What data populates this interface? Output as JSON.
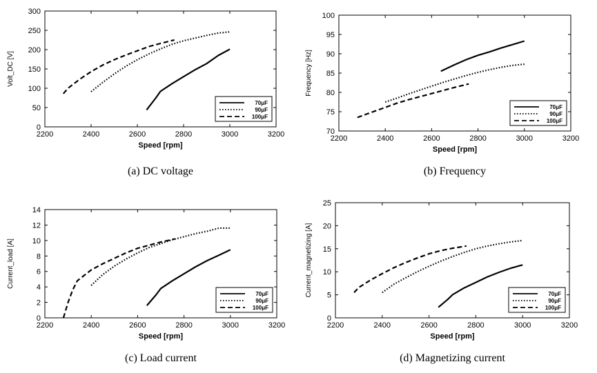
{
  "chart_data": [
    {
      "type": "line",
      "caption": "(a)  DC  voltage",
      "xlabel": "Speed [rpm]",
      "ylabel": "Volt_DC [V]",
      "xlim": [
        2200,
        3200
      ],
      "ylim": [
        0,
        300
      ],
      "xticks": [
        2200,
        2400,
        2600,
        2800,
        3000,
        3200
      ],
      "yticks": [
        0,
        50,
        100,
        150,
        200,
        250,
        300
      ],
      "legend_position": "bottom-right",
      "series": [
        {
          "name": "70μF",
          "style": "solid",
          "x": [
            2640,
            2680,
            2700,
            2750,
            2800,
            2850,
            2900,
            2950,
            3000
          ],
          "y": [
            44,
            75,
            92,
            112,
            130,
            148,
            164,
            185,
            201
          ]
        },
        {
          "name": "90μF",
          "style": "dotted",
          "x": [
            2400,
            2450,
            2500,
            2550,
            2600,
            2650,
            2700,
            2750,
            2800,
            2850,
            2900,
            2950,
            3000
          ],
          "y": [
            91,
            115,
            137,
            157,
            174,
            189,
            202,
            214,
            223,
            230,
            237,
            243,
            246
          ]
        },
        {
          "name": "100μF",
          "style": "dashed",
          "x": [
            2280,
            2300,
            2350,
            2400,
            2450,
            2500,
            2550,
            2600,
            2650,
            2700,
            2760
          ],
          "y": [
            86,
            100,
            123,
            143,
            160,
            174,
            186,
            197,
            208,
            216,
            225
          ]
        }
      ]
    },
    {
      "type": "line",
      "caption": "(b)  Frequency",
      "xlabel": "Speed [rpm]",
      "ylabel": "Frequency [Hz]",
      "xlim": [
        2200,
        3200
      ],
      "ylim": [
        70,
        100
      ],
      "xticks": [
        2200,
        2400,
        2600,
        2800,
        3000,
        3200
      ],
      "yticks": [
        70,
        75,
        80,
        85,
        90,
        95,
        100
      ],
      "legend_position": "bottom-right",
      "series": [
        {
          "name": "70μF",
          "style": "solid",
          "x": [
            2640,
            2700,
            2750,
            2800,
            2850,
            2900,
            2950,
            3000
          ],
          "y": [
            85.5,
            87.2,
            88.5,
            89.6,
            90.5,
            91.5,
            92.4,
            93.3
          ]
        },
        {
          "name": "90μF",
          "style": "dotted",
          "x": [
            2400,
            2450,
            2500,
            2550,
            2600,
            2650,
            2700,
            2750,
            2800,
            2850,
            2900,
            2950,
            3000
          ],
          "y": [
            77.5,
            78.5,
            79.6,
            80.6,
            81.6,
            82.6,
            83.5,
            84.4,
            85.2,
            85.9,
            86.5,
            87.0,
            87.3
          ]
        },
        {
          "name": "100μF",
          "style": "dashed",
          "x": [
            2280,
            2320,
            2400,
            2450,
            2500,
            2550,
            2600,
            2650,
            2700,
            2760
          ],
          "y": [
            73.5,
            74.4,
            76.1,
            77.2,
            78.1,
            78.9,
            79.7,
            80.5,
            81.3,
            82.2
          ]
        }
      ]
    },
    {
      "type": "line",
      "caption": "(c)  Load  current",
      "xlabel": "Speed [rpm]",
      "ylabel": "Current_load [A]",
      "xlim": [
        2200,
        3200
      ],
      "ylim": [
        0,
        14
      ],
      "xticks": [
        2200,
        2400,
        2600,
        2800,
        3000,
        3200
      ],
      "yticks": [
        0,
        2,
        4,
        6,
        8,
        10,
        12,
        14
      ],
      "legend_position": "bottom-right",
      "series": [
        {
          "name": "70μF",
          "style": "solid",
          "x": [
            2640,
            2680,
            2700,
            2750,
            2800,
            2850,
            2900,
            2950,
            3000
          ],
          "y": [
            1.6,
            3.0,
            3.8,
            4.8,
            5.7,
            6.6,
            7.4,
            8.1,
            8.8
          ]
        },
        {
          "name": "90μF",
          "style": "dotted",
          "x": [
            2400,
            2450,
            2500,
            2550,
            2600,
            2650,
            2700,
            2750,
            2800,
            2850,
            2900,
            2950,
            3000
          ],
          "y": [
            4.2,
            5.6,
            6.7,
            7.6,
            8.4,
            9.1,
            9.6,
            10.1,
            10.5,
            10.9,
            11.2,
            11.6,
            11.6
          ]
        },
        {
          "name": "100μF",
          "style": "dashed",
          "x": [
            2280,
            2300,
            2320,
            2340,
            2400,
            2450,
            2500,
            2550,
            2600,
            2650,
            2700,
            2760
          ],
          "y": [
            0,
            2.0,
            3.6,
            4.8,
            6.2,
            7.0,
            7.7,
            8.4,
            9.0,
            9.4,
            9.8,
            10.2
          ]
        }
      ]
    },
    {
      "type": "line",
      "caption": "(d)  Magnetizing  current",
      "xlabel": "Speed [rpm]",
      "ylabel": "Current_magnetizing [A]",
      "xlim": [
        2200,
        3200
      ],
      "ylim": [
        0,
        25
      ],
      "xticks": [
        2200,
        2400,
        2600,
        2800,
        3000,
        3200
      ],
      "yticks": [
        0,
        5,
        10,
        15,
        20,
        25
      ],
      "legend_position": "bottom-right",
      "series": [
        {
          "name": "70μF",
          "style": "solid",
          "x": [
            2640,
            2680,
            2700,
            2750,
            2800,
            2850,
            2900,
            2950,
            3000
          ],
          "y": [
            2.3,
            4.0,
            5.0,
            6.5,
            7.7,
            8.9,
            9.9,
            10.8,
            11.5
          ]
        },
        {
          "name": "90μF",
          "style": "dotted",
          "x": [
            2400,
            2450,
            2500,
            2550,
            2600,
            2650,
            2700,
            2750,
            2800,
            2850,
            2900,
            2950,
            3000
          ],
          "y": [
            5.5,
            7.3,
            8.7,
            10.0,
            11.2,
            12.3,
            13.3,
            14.2,
            15.0,
            15.6,
            16.1,
            16.5,
            16.8
          ]
        },
        {
          "name": "100μF",
          "style": "dashed",
          "x": [
            2280,
            2300,
            2350,
            2400,
            2450,
            2500,
            2550,
            2600,
            2650,
            2700,
            2760
          ],
          "y": [
            5.5,
            6.6,
            8.2,
            9.6,
            10.9,
            12.0,
            13.0,
            13.9,
            14.6,
            15.1,
            15.6
          ]
        }
      ]
    }
  ]
}
